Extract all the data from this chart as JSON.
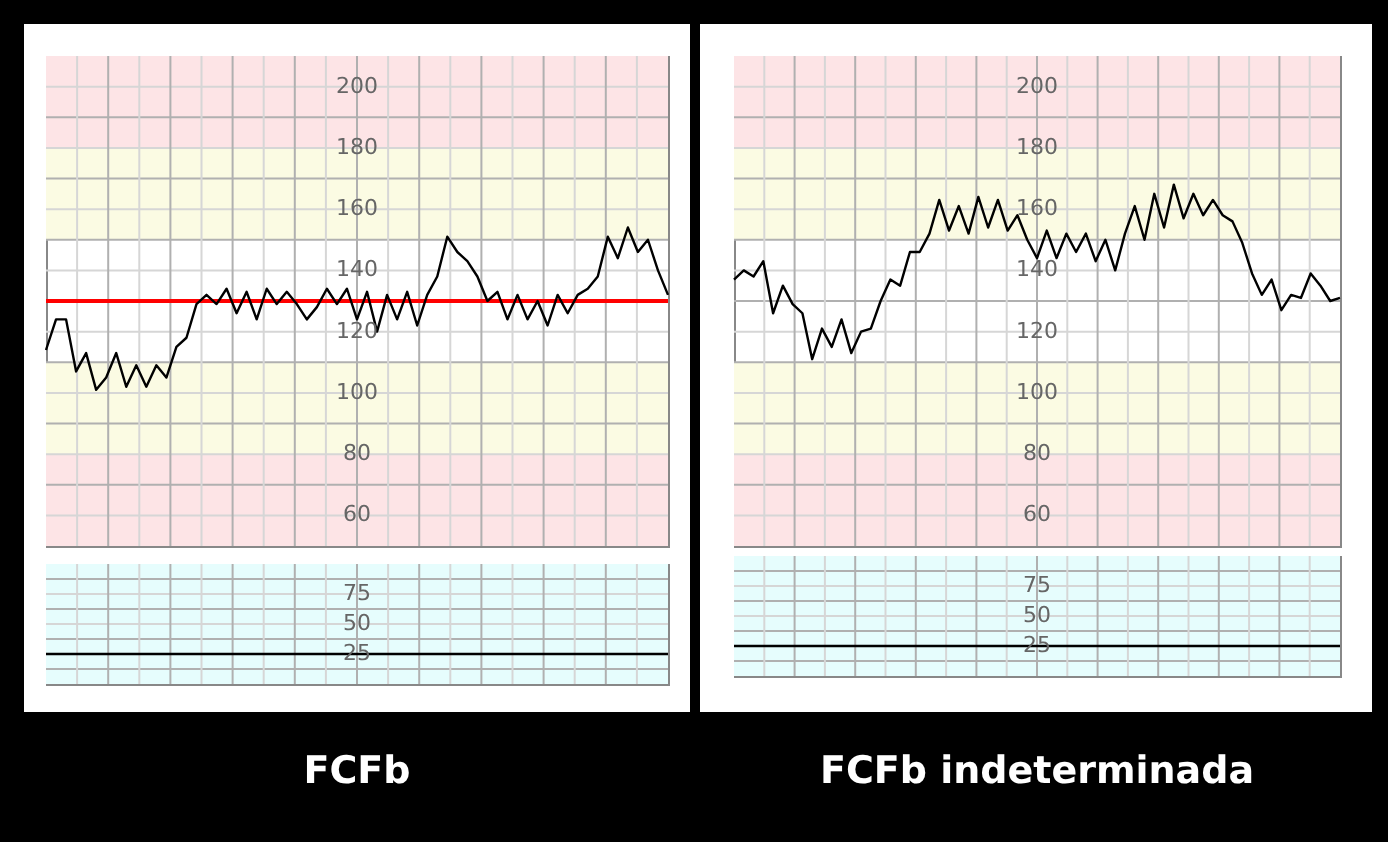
{
  "chart_data": [
    {
      "type": "line",
      "categories": [
        null,
        null,
        null,
        null,
        null,
        null,
        null,
        null,
        null,
        null,
        null,
        null,
        null,
        null,
        null,
        null,
        null,
        null,
        null,
        null,
        null,
        null,
        null,
        null,
        null,
        null,
        null,
        null,
        null,
        null,
        null,
        null,
        null,
        null,
        null,
        null,
        null,
        null,
        null,
        null,
        null,
        null,
        null,
        null,
        null,
        null,
        null,
        null,
        null,
        null,
        null,
        null,
        null,
        null,
        null,
        null,
        null,
        null,
        null,
        null,
        null,
        null,
        null
      ],
      "series": [
        {
          "color": "#000000",
          "values": [
            114,
            124,
            124,
            107,
            113,
            101,
            105,
            113,
            102,
            109,
            102,
            109,
            105,
            115,
            118,
            129,
            132,
            129,
            134,
            126,
            133,
            124,
            134,
            129,
            133,
            129,
            124,
            128,
            134,
            129,
            134,
            124,
            133,
            120,
            132,
            124,
            133,
            122,
            132,
            138,
            151,
            146,
            143,
            138,
            130,
            133,
            124,
            132,
            124,
            130,
            122,
            132,
            126,
            132,
            134,
            138,
            151,
            144,
            154,
            146,
            150,
            140,
            132
          ]
        }
      ],
      "ylim": [
        50,
        210
      ],
      "yticks": [
        60,
        80,
        100,
        120,
        140,
        160,
        180,
        200
      ],
      "grid": true,
      "tick_labels": "y",
      "bands": [
        {
          "axis": "y",
          "from": 180,
          "to": 210,
          "color": "#fde4e6"
        },
        {
          "axis": "y",
          "from": 150,
          "to": 180,
          "color": "#fbfbe3"
        },
        {
          "axis": "y",
          "from": 80,
          "to": 110,
          "color": "#fbfbe3"
        },
        {
          "axis": "y",
          "from": 50,
          "to": 80,
          "color": "#fde4e6"
        }
      ],
      "ref_lines": [
        {
          "axis": "y",
          "value": 130,
          "color": "#ff0000"
        }
      ]
    },
    {
      "type": "line",
      "title": "FCFb",
      "categories": [
        null,
        null,
        null,
        null,
        null,
        null,
        null,
        null,
        null,
        null
      ],
      "series": [
        {
          "color": "#000000",
          "values": [
            25,
            25,
            25,
            25,
            25,
            25,
            25,
            25,
            25,
            25
          ]
        }
      ],
      "ylim": [
        0,
        100
      ],
      "yticks": [
        25,
        50,
        75
      ],
      "grid": true,
      "tick_labels": "y",
      "bands": [
        {
          "axis": "y",
          "from": 0,
          "to": 100,
          "color": "#e6fdfd"
        }
      ]
    },
    {
      "type": "line",
      "categories": [
        null,
        null,
        null,
        null,
        null,
        null,
        null,
        null,
        null,
        null,
        null,
        null,
        null,
        null,
        null,
        null,
        null,
        null,
        null,
        null,
        null,
        null,
        null,
        null,
        null,
        null,
        null,
        null,
        null,
        null,
        null,
        null,
        null,
        null,
        null,
        null,
        null,
        null,
        null,
        null,
        null,
        null,
        null,
        null,
        null,
        null,
        null,
        null,
        null,
        null,
        null,
        null,
        null,
        null,
        null,
        null,
        null,
        null,
        null,
        null,
        null,
        null,
        null
      ],
      "series": [
        {
          "color": "#000000",
          "values": [
            137,
            140,
            138,
            143,
            126,
            135,
            129,
            126,
            111,
            121,
            115,
            124,
            113,
            120,
            121,
            130,
            137,
            135,
            146,
            146,
            152,
            163,
            153,
            161,
            152,
            164,
            154,
            163,
            153,
            158,
            150,
            144,
            153,
            144,
            152,
            146,
            152,
            143,
            150,
            140,
            152,
            161,
            150,
            165,
            154,
            168,
            157,
            165,
            158,
            163,
            158,
            156,
            149,
            139,
            132,
            137,
            127,
            132,
            131,
            139,
            135,
            130,
            131
          ]
        }
      ],
      "ylim": [
        50,
        210
      ],
      "yticks": [
        60,
        80,
        100,
        120,
        140,
        160,
        180,
        200
      ],
      "grid": true,
      "tick_labels": "y",
      "bands": [
        {
          "axis": "y",
          "from": 180,
          "to": 210,
          "color": "#fde4e6"
        },
        {
          "axis": "y",
          "from": 150,
          "to": 180,
          "color": "#fbfbe3"
        },
        {
          "axis": "y",
          "from": 80,
          "to": 110,
          "color": "#fbfbe3"
        },
        {
          "axis": "y",
          "from": 50,
          "to": 80,
          "color": "#fde4e6"
        }
      ]
    },
    {
      "type": "line",
      "title": "FCFb indeterminada",
      "categories": [
        null,
        null,
        null,
        null,
        null,
        null,
        null,
        null,
        null,
        null
      ],
      "series": [
        {
          "color": "#000000",
          "values": [
            25,
            25,
            25,
            25,
            25,
            25,
            25,
            25,
            25,
            25
          ]
        }
      ],
      "ylim": [
        0,
        100
      ],
      "yticks": [
        25,
        50,
        75
      ],
      "grid": true,
      "tick_labels": "y",
      "bands": [
        {
          "axis": "y",
          "from": 0,
          "to": 100,
          "color": "#e6fdfd"
        }
      ]
    }
  ]
}
